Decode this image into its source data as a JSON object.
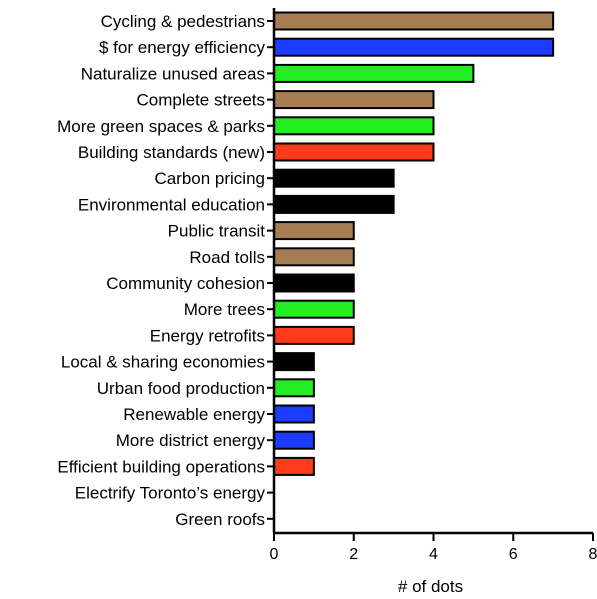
{
  "chart_data": {
    "type": "bar",
    "orientation": "horizontal",
    "title": "",
    "xlabel": "# of dots",
    "ylabel": "",
    "xlim": [
      0,
      8
    ],
    "xticks": [
      0,
      2,
      4,
      6,
      8
    ],
    "grid": false,
    "legend": "none",
    "categories": [
      "Cycling & pedestrians",
      "$ for energy efficiency",
      "Naturalize unused areas",
      "Complete streets",
      "More green spaces & parks",
      "Building standards (new)",
      "Carbon pricing",
      "Environmental education",
      "Public transit",
      "Road tolls",
      "Community cohesion",
      "More trees",
      "Energy retrofits",
      "Local & sharing economies",
      "Urban food production",
      "Renewable energy",
      "More district energy",
      "Efficient building operations",
      "Electrify Toronto’s energy",
      "Green roofs"
    ],
    "values": [
      7,
      7,
      5,
      4,
      4,
      4,
      3,
      3,
      2,
      2,
      2,
      2,
      2,
      1,
      1,
      1,
      1,
      1,
      0,
      0
    ],
    "bar_colors": [
      "#a67c52",
      "#1c3cff",
      "#22ee22",
      "#a67c52",
      "#22ee22",
      "#ff3b1c",
      "#000000",
      "#000000",
      "#a67c52",
      "#a67c52",
      "#000000",
      "#22ee22",
      "#ff3b1c",
      "#000000",
      "#22ee22",
      "#1c3cff",
      "#1c3cff",
      "#ff3b1c",
      "#000000",
      "#000000"
    ]
  }
}
